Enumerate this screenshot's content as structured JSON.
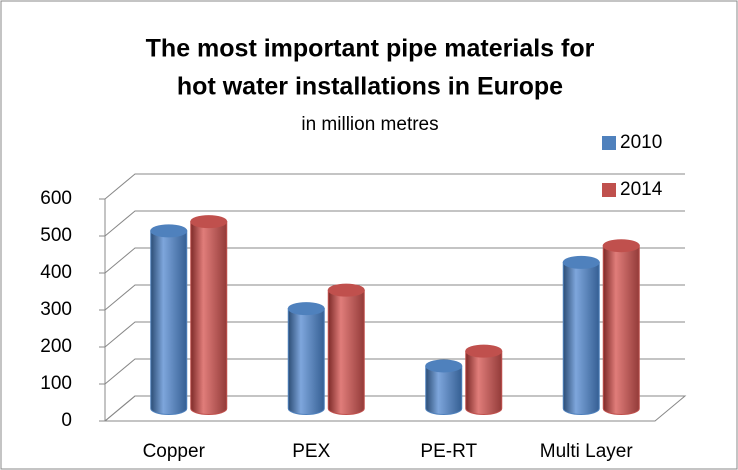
{
  "chart_data": {
    "type": "bar3d",
    "title": [
      "The most important pipe materials for",
      "hot water installations in Europe"
    ],
    "subtitle": "in million metres",
    "categories": [
      "Copper",
      "PEX",
      "PE-RT",
      "Multi Layer"
    ],
    "series": [
      {
        "name": "2010",
        "color": "#4f81bd",
        "values": [
          480,
          270,
          115,
          395
        ]
      },
      {
        "name": "2014",
        "color": "#c0504d",
        "values": [
          505,
          320,
          155,
          440
        ]
      }
    ],
    "ylim": [
      0,
      600
    ],
    "yticks": [
      0,
      100,
      200,
      300,
      400,
      500,
      600
    ],
    "grid": true,
    "legend": "right"
  }
}
